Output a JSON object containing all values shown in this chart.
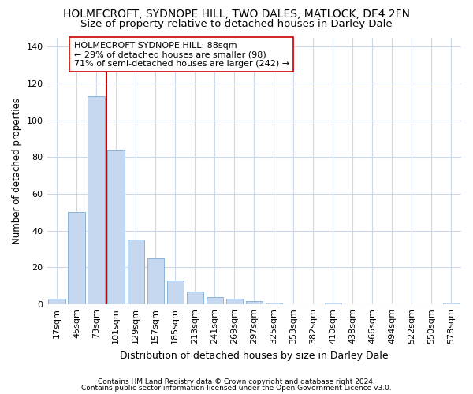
{
  "title": "HOLMECROFT, SYDNOPE HILL, TWO DALES, MATLOCK, DE4 2FN",
  "subtitle": "Size of property relative to detached houses in Darley Dale",
  "xlabel": "Distribution of detached houses by size in Darley Dale",
  "ylabel": "Number of detached properties",
  "footnote1": "Contains HM Land Registry data © Crown copyright and database right 2024.",
  "footnote2": "Contains public sector information licensed under the Open Government Licence v3.0.",
  "bar_labels": [
    "17sqm",
    "45sqm",
    "73sqm",
    "101sqm",
    "129sqm",
    "157sqm",
    "185sqm",
    "213sqm",
    "241sqm",
    "269sqm",
    "297sqm",
    "325sqm",
    "353sqm",
    "382sqm",
    "410sqm",
    "438sqm",
    "466sqm",
    "494sqm",
    "522sqm",
    "550sqm",
    "578sqm"
  ],
  "bar_values": [
    3,
    50,
    113,
    84,
    35,
    25,
    13,
    7,
    4,
    3,
    2,
    1,
    0,
    0,
    1,
    0,
    0,
    0,
    0,
    0,
    1
  ],
  "bar_color": "#c5d8f0",
  "bar_edge_color": "#8ab4d8",
  "ylim": [
    0,
    145
  ],
  "yticks": [
    0,
    20,
    40,
    60,
    80,
    100,
    120,
    140
  ],
  "red_line_x": 2.5,
  "red_line_color": "#cc0000",
  "annotation_text": "HOLMECROFT SYDNOPE HILL: 88sqm\n← 29% of detached houses are smaller (98)\n71% of semi-detached houses are larger (242) →",
  "annotation_box_color": "#ffffff",
  "annotation_box_edge": "#cc0000",
  "background_color": "#ffffff",
  "grid_color": "#ccd9ea",
  "title_fontsize": 10,
  "subtitle_fontsize": 9.5,
  "xlabel_fontsize": 9,
  "ylabel_fontsize": 8.5,
  "tick_fontsize": 8,
  "annotation_fontsize": 8,
  "footnote_fontsize": 6.5
}
